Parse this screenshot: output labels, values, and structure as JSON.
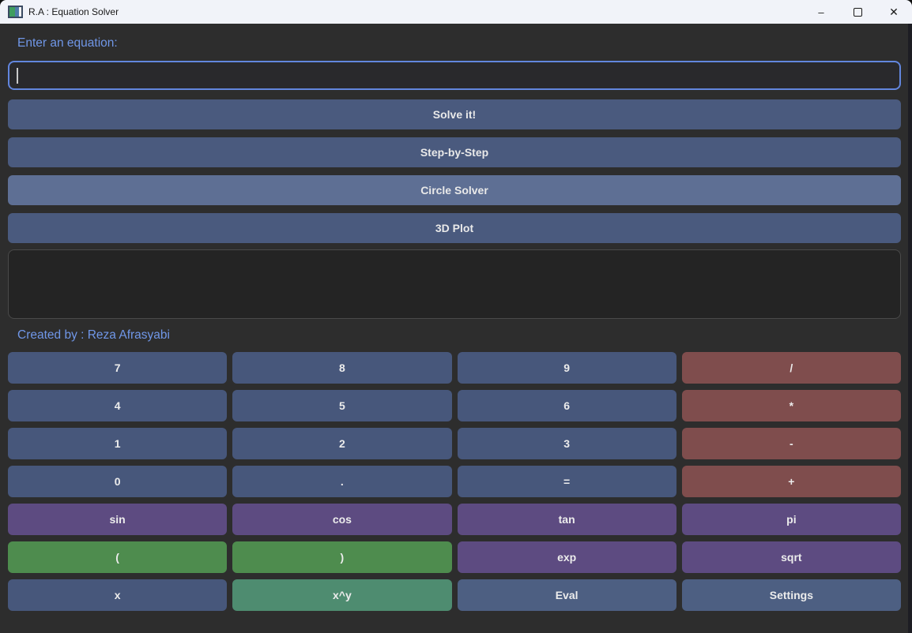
{
  "window": {
    "title": "R.A : Equation Solver",
    "controls": {
      "minimize_glyph": "–",
      "maximize_glyph": "□",
      "close_glyph": "✕"
    }
  },
  "equation": {
    "label": "Enter an equation:",
    "value": ""
  },
  "actions": [
    {
      "label": "Solve it!"
    },
    {
      "label": "Step-by-Step"
    },
    {
      "label": "Circle Solver"
    },
    {
      "label": "3D Plot"
    }
  ],
  "output": {
    "value": ""
  },
  "credit": "Created by : Reza Afrasyabi",
  "keypad": {
    "rows": [
      [
        {
          "label": "7",
          "name": "7",
          "type": "blue"
        },
        {
          "label": "8",
          "name": "8",
          "type": "blue"
        },
        {
          "label": "9",
          "name": "9",
          "type": "blue"
        },
        {
          "label": "/",
          "name": "divide",
          "type": "red"
        }
      ],
      [
        {
          "label": "4",
          "name": "4",
          "type": "blue"
        },
        {
          "label": "5",
          "name": "5",
          "type": "blue"
        },
        {
          "label": "6",
          "name": "6",
          "type": "blue"
        },
        {
          "label": "*",
          "name": "multiply",
          "type": "red"
        }
      ],
      [
        {
          "label": "1",
          "name": "1",
          "type": "blue"
        },
        {
          "label": "2",
          "name": "2",
          "type": "blue"
        },
        {
          "label": "3",
          "name": "3",
          "type": "blue"
        },
        {
          "label": "-",
          "name": "minus",
          "type": "red"
        }
      ],
      [
        {
          "label": "0",
          "name": "0",
          "type": "blue"
        },
        {
          "label": ".",
          "name": "dot",
          "type": "blue"
        },
        {
          "label": "=",
          "name": "equals",
          "type": "blue"
        },
        {
          "label": "+",
          "name": "plus",
          "type": "red"
        }
      ],
      [
        {
          "label": "sin",
          "name": "sin",
          "type": "purple"
        },
        {
          "label": "cos",
          "name": "cos",
          "type": "purple"
        },
        {
          "label": "tan",
          "name": "tan",
          "type": "purple"
        },
        {
          "label": "pi",
          "name": "pi",
          "type": "purple"
        }
      ],
      [
        {
          "label": "(",
          "name": "open-paren",
          "type": "green"
        },
        {
          "label": ")",
          "name": "close-paren",
          "type": "green"
        },
        {
          "label": "exp",
          "name": "exp",
          "type": "purple"
        },
        {
          "label": "sqrt",
          "name": "sqrt",
          "type": "purple"
        }
      ],
      [
        {
          "label": "x",
          "name": "x",
          "type": "blue"
        },
        {
          "label": "x^y",
          "name": "x-pow-y",
          "type": "teal"
        },
        {
          "label": "Eval",
          "name": "eval",
          "type": "blue-light"
        },
        {
          "label": "Settings",
          "name": "settings",
          "type": "blue-light"
        }
      ]
    ]
  },
  "palette": {
    "window_bg": "#2D2D2D",
    "panel_bg": "#242424",
    "titlebar_bg": "#F1F3F9",
    "accent_text": "#7097E8",
    "input_border": "#6286DE",
    "action_blue": "#4A5A7E",
    "action_blue_light": "#5E6F94",
    "key_blue": "#47577B",
    "key_blue_light": "#4D5F82",
    "key_red": "#7F4D4D",
    "key_purple": "#5D4B81",
    "key_green": "#4E8C4E",
    "key_teal": "#4E8C70"
  }
}
